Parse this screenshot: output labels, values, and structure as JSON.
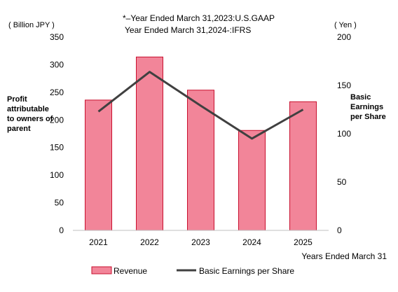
{
  "chart_data": {
    "type": "bar",
    "notes": [
      "*–Year Ended  March 31,2023:U.S.GAAP",
      "Year Ended  March 31,2024-:IFRS"
    ],
    "categories": [
      "2021",
      "2022",
      "2023",
      "2024",
      "2025"
    ],
    "series": [
      {
        "name": "Revenue",
        "type": "bar",
        "axis": "left",
        "values": [
          236,
          314,
          254,
          181,
          233
        ]
      },
      {
        "name": "Basic Earnings per Share",
        "type": "line",
        "axis": "right",
        "values": [
          123,
          164,
          129,
          95,
          125
        ]
      }
    ],
    "y_left": {
      "label_lines": [
        "Profit",
        "attributable",
        "to owners of",
        "parent"
      ],
      "unit": "( Billion JPY )",
      "ylim": [
        0,
        350
      ],
      "ticks": [
        "0",
        "50",
        "100",
        "150",
        "200",
        "250",
        "300",
        "350"
      ]
    },
    "y_right": {
      "label_lines": [
        "Basic",
        "Earnings",
        "per Share"
      ],
      "unit": "( Yen )",
      "ylim": [
        0,
        200
      ],
      "ticks": [
        "0",
        "50",
        "100",
        "150",
        "200"
      ]
    },
    "xlabel": "Years Ended March 31",
    "grid": false,
    "legend_position": "bottom",
    "colors": {
      "bar_fill": "#F28599",
      "bar_stroke": "#C8102E",
      "line": "#404040",
      "axis": "#BFBFBF"
    }
  }
}
